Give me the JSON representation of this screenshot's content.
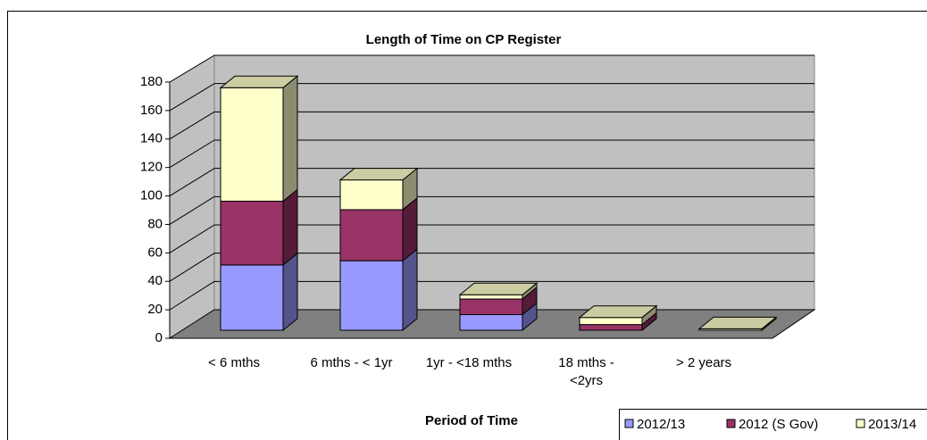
{
  "chart_data": {
    "type": "bar3d_stacked",
    "title": "Length of Time on CP Register",
    "x_label": "Period of Time",
    "categories": [
      "< 6 mths",
      "6 mths - < 1yr",
      "1yr - <18 mths",
      "18 mths - <2yrs",
      "> 2 years"
    ],
    "series": [
      {
        "name": "2012/13",
        "color": "#9999ff",
        "values": [
          46,
          49,
          11,
          0,
          0
        ]
      },
      {
        "name": "2012 (S Gov)",
        "color": "#993366",
        "values": [
          45,
          36,
          11,
          4,
          0
        ]
      },
      {
        "name": "2013/14",
        "color": "#ffffcc",
        "values": [
          80,
          21,
          3,
          5,
          1
        ]
      }
    ],
    "ylim": [
      0,
      180
    ],
    "yticks": [
      0,
      20,
      40,
      60,
      80,
      100,
      120,
      140,
      160,
      180
    ],
    "grid": true
  }
}
